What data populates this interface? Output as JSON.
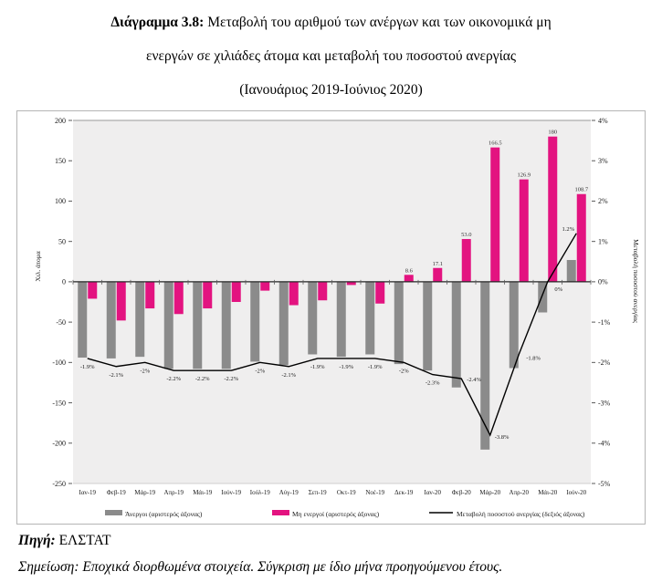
{
  "title": {
    "prefix": "Διάγραμμα 3.8:",
    "line1_rest": " Μεταβολή του αριθμού των ανέργων και των οικονομικά μη",
    "line2": "ενεργών σε χιλιάδες άτομα και μεταβολή του ποσοστού ανεργίας",
    "line3": "(Ιανουάριος 2019-Ιούνιος 2020)"
  },
  "footer": {
    "source_label": "Πηγή:",
    "source_value": " ΕΛΣΤΑΤ",
    "note_label": "Σημείωση:",
    "note_value": " Εποχικά διορθωμένα στοιχεία. Σύγκριση με ίδιο μήνα προηγούμενου έτους."
  },
  "legend": {
    "items": [
      {
        "label": "Άνεργοι (αριστερός άξονας)",
        "swatch": "bar",
        "color": "#8B8B8B"
      },
      {
        "label": "Μη ενεργοί (αριστερός άξονας)",
        "swatch": "bar",
        "color": "#E31380"
      },
      {
        "label": "Μεταβολή ποσοστού ανεργίας (δεξιός άξονας)",
        "swatch": "line",
        "color": "#000000"
      }
    ]
  },
  "chart_data": {
    "type": "bar",
    "subtype": "combo-bar-line-dual-axis",
    "grid": false,
    "legend_position": "bottom",
    "plot_bg": "#EFEEEE",
    "categories": [
      "Ιαν-19",
      "Φεβ-19",
      "Μάρ-19",
      "Απρ-19",
      "Μάι-19",
      "Ιούν-19",
      "Ιούλ-19",
      "Αύγ-19",
      "Σεπ-19",
      "Οκτ-19",
      "Νοέ-19",
      "Δεκ-19",
      "Ιαν-20",
      "Φεβ-20",
      "Μάρ-20",
      "Απρ-20",
      "Μάι-20",
      "Ιούν-20"
    ],
    "series": [
      {
        "name": "Άνεργοι (αριστερός άξονας)",
        "type": "bar",
        "axis": "left",
        "color": "#8B8B8B",
        "values": [
          -94,
          -95,
          -93,
          -108,
          -108,
          -108,
          -99,
          -103,
          -90,
          -93,
          -90,
          -102,
          -110,
          -131,
          -208,
          -107,
          -38,
          27
        ],
        "labels": [
          null,
          null,
          null,
          null,
          null,
          null,
          null,
          null,
          null,
          null,
          null,
          null,
          null,
          null,
          null,
          null,
          null,
          null
        ]
      },
      {
        "name": "Μη ενεργοί (αριστερός άξονας)",
        "type": "bar",
        "axis": "left",
        "color": "#E31380",
        "values": [
          -21,
          -48,
          -33,
          -40,
          -33,
          -25,
          -11,
          -29,
          -23,
          -4,
          -27,
          8.6,
          17.1,
          53,
          166.5,
          126.9,
          180,
          108.7
        ],
        "labels": [
          null,
          null,
          null,
          null,
          null,
          null,
          null,
          null,
          null,
          null,
          null,
          "8.6",
          "17.1",
          "53.0",
          "166.5",
          "126.9",
          "180",
          "108.7"
        ]
      },
      {
        "name": "Μεταβολή ποσοστού ανεργίας (δεξιός άξονας)",
        "type": "line",
        "axis": "right",
        "color": "#000000",
        "values": [
          -1.9,
          -2.1,
          -2,
          -2.2,
          -2.2,
          -2.2,
          -2,
          -2.1,
          -1.9,
          -1.9,
          -1.9,
          -2,
          -2.3,
          -2.4,
          -3.8,
          -1.8,
          0,
          1.2
        ],
        "labels": [
          "-1.9%",
          "-2.1%",
          "-2%",
          "-2.2%",
          "-2.2%",
          "-2.2%",
          "-2%",
          "-2.1%",
          "-1.9%",
          "-1.9%",
          "-1.9%",
          "-2%",
          "-2.3%",
          "-2.4%",
          "-3.8%",
          "-1.8%",
          "0%",
          "1.2%"
        ]
      }
    ],
    "left_axis": {
      "title": "Χιλ. άτομα",
      "min": -250,
      "max": 200,
      "step": 50,
      "ticks": [
        "200",
        "150",
        "100",
        "50",
        "0",
        "-50",
        "-100",
        "-150",
        "-200",
        "-250"
      ]
    },
    "right_axis": {
      "title": "Μεταβολή ποσοστού ανεργίας",
      "min": -5,
      "max": 4,
      "step": 1,
      "ticks": [
        "4%",
        "3%",
        "2%",
        "1%",
        "0%",
        "-1%",
        "-2%",
        "-3%",
        "-4%",
        "-5%"
      ]
    }
  }
}
